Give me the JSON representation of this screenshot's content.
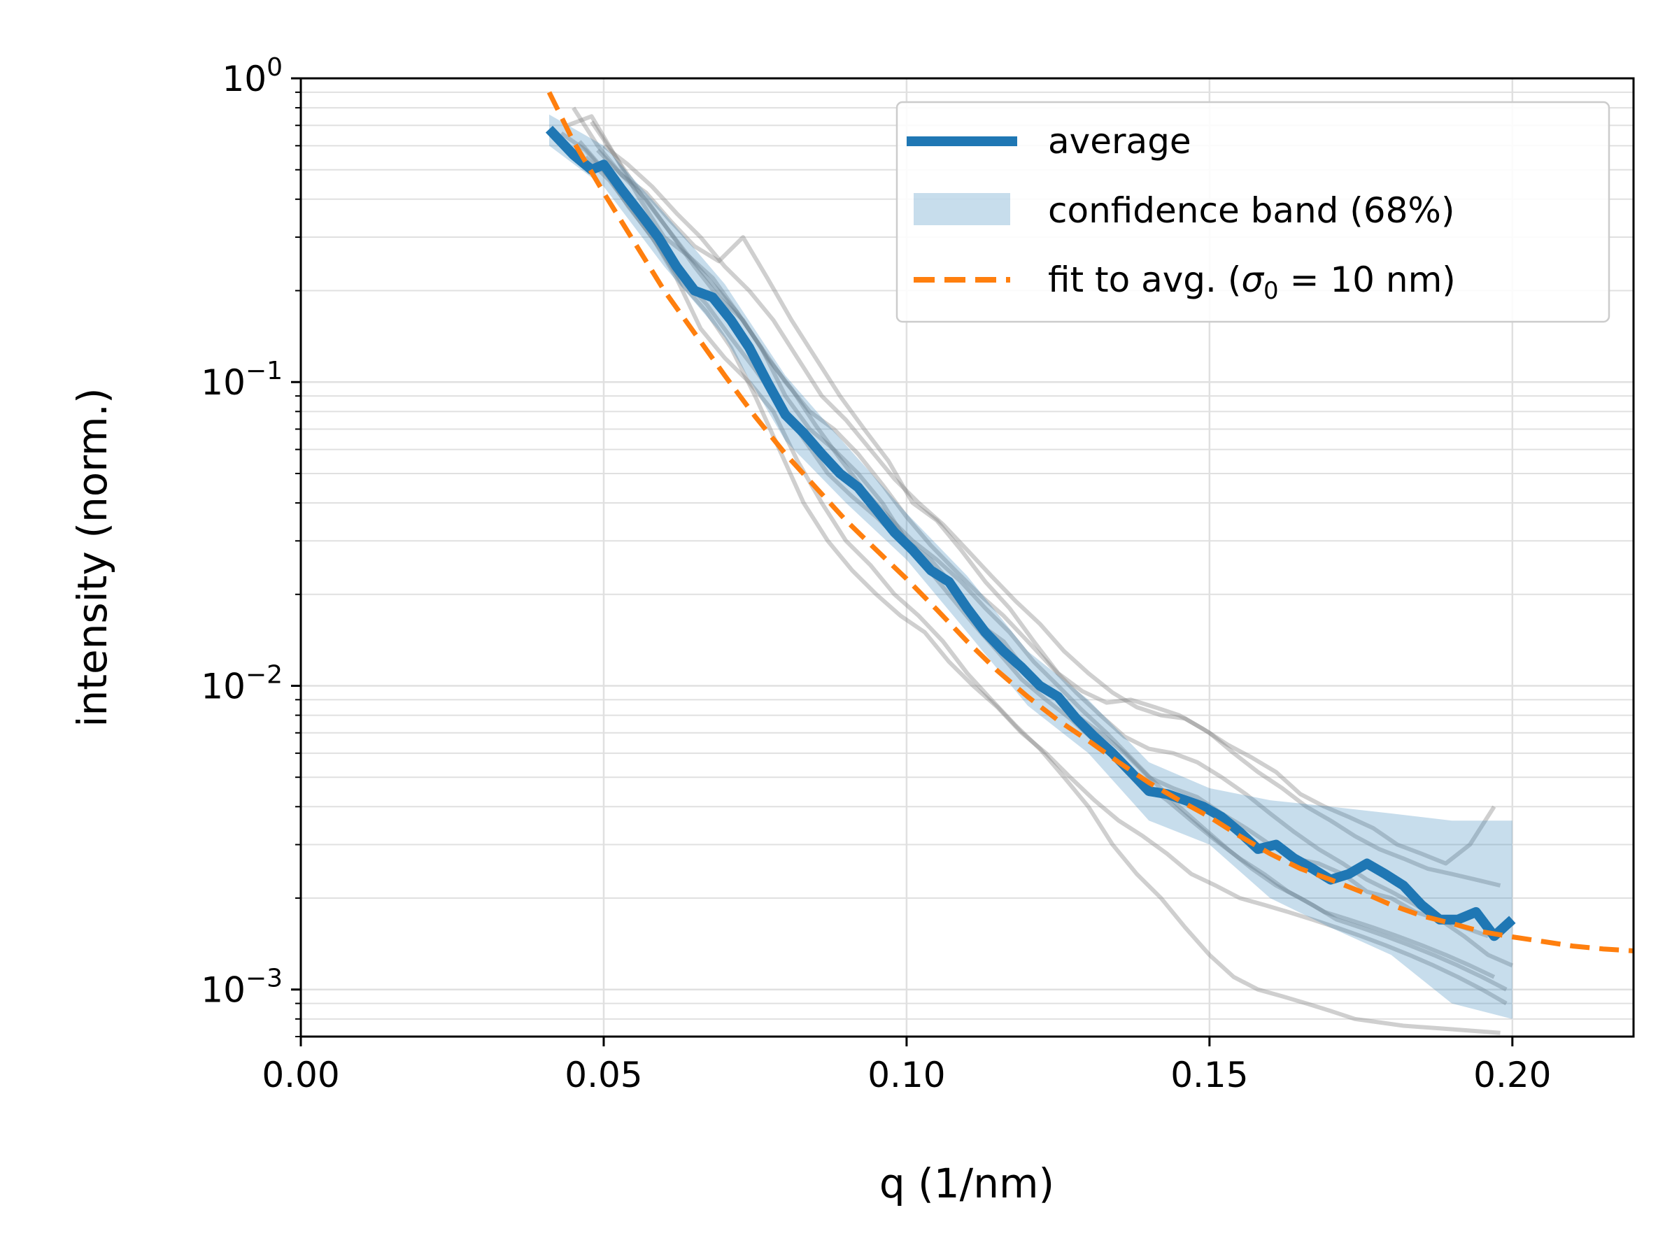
{
  "chart_data": {
    "type": "line",
    "title": "",
    "xlabel": "q (1/nm)",
    "ylabel": "intensity (norm.)",
    "xlim": [
      0.0,
      0.22
    ],
    "ylim": [
      0.0007,
      1.0
    ],
    "yscale": "log",
    "grid": true,
    "legend_position": "top-right",
    "x_ticks": [
      {
        "value": 0.0,
        "label": "0.00"
      },
      {
        "value": 0.05,
        "label": "0.05"
      },
      {
        "value": 0.1,
        "label": "0.10"
      },
      {
        "value": 0.15,
        "label": "0.15"
      },
      {
        "value": 0.2,
        "label": "0.20"
      }
    ],
    "y_ticks": [
      {
        "value": 1.0,
        "base": "10",
        "exp": "0"
      },
      {
        "value": 0.1,
        "base": "10",
        "exp": "−1"
      },
      {
        "value": 0.01,
        "base": "10",
        "exp": "−2"
      },
      {
        "value": 0.001,
        "base": "10",
        "exp": "−3"
      }
    ],
    "legend": [
      {
        "key": "avg",
        "label": "average"
      },
      {
        "key": "band",
        "label": "confidence band (68%)"
      },
      {
        "key": "fit",
        "label": "fit to avg. (",
        "label_symbol": "σ",
        "label_sub": "0",
        "label_tail": " = 10 nm)"
      }
    ],
    "colors": {
      "average": "#1f77b4",
      "band": "#1f77b4",
      "fit": "#ff7f0e",
      "samples": "#808080",
      "grid": "#e0e0e0"
    },
    "series": [
      {
        "name": "average",
        "x": [
          0.041,
          0.045,
          0.048,
          0.05,
          0.053,
          0.056,
          0.059,
          0.062,
          0.065,
          0.068,
          0.071,
          0.074,
          0.077,
          0.08,
          0.083,
          0.086,
          0.089,
          0.092,
          0.095,
          0.098,
          0.101,
          0.104,
          0.107,
          0.11,
          0.113,
          0.116,
          0.119,
          0.122,
          0.125,
          0.128,
          0.131,
          0.134,
          0.137,
          0.14,
          0.143,
          0.146,
          0.149,
          0.152,
          0.155,
          0.158,
          0.161,
          0.164,
          0.167,
          0.17,
          0.173,
          0.176,
          0.179,
          0.182,
          0.185,
          0.188,
          0.191,
          0.194,
          0.197,
          0.2
        ],
        "y": [
          0.68,
          0.56,
          0.5,
          0.52,
          0.43,
          0.36,
          0.3,
          0.24,
          0.2,
          0.19,
          0.16,
          0.13,
          0.1,
          0.078,
          0.068,
          0.058,
          0.05,
          0.045,
          0.038,
          0.032,
          0.028,
          0.024,
          0.022,
          0.018,
          0.015,
          0.013,
          0.0115,
          0.01,
          0.0092,
          0.0078,
          0.0068,
          0.006,
          0.0052,
          0.0045,
          0.0044,
          0.0042,
          0.004,
          0.0037,
          0.0033,
          0.0029,
          0.003,
          0.0027,
          0.0025,
          0.0023,
          0.0024,
          0.0026,
          0.0024,
          0.0022,
          0.0019,
          0.0017,
          0.0017,
          0.0018,
          0.0015,
          0.0017
        ]
      },
      {
        "name": "confidence band (68%)",
        "x": [
          0.041,
          0.05,
          0.06,
          0.07,
          0.08,
          0.09,
          0.1,
          0.11,
          0.12,
          0.13,
          0.14,
          0.15,
          0.16,
          0.17,
          0.18,
          0.19,
          0.2
        ],
        "lower": [
          0.6,
          0.44,
          0.24,
          0.14,
          0.064,
          0.04,
          0.026,
          0.015,
          0.0086,
          0.006,
          0.0036,
          0.003,
          0.002,
          0.0016,
          0.0013,
          0.0009,
          0.0008
        ],
        "upper": [
          0.76,
          0.6,
          0.36,
          0.21,
          0.105,
          0.062,
          0.037,
          0.023,
          0.013,
          0.009,
          0.0056,
          0.0046,
          0.0042,
          0.004,
          0.0038,
          0.0036,
          0.0036
        ]
      },
      {
        "name": "fit to avg.",
        "x": [
          0.041,
          0.045,
          0.05,
          0.055,
          0.06,
          0.065,
          0.07,
          0.075,
          0.08,
          0.085,
          0.09,
          0.095,
          0.1,
          0.105,
          0.11,
          0.115,
          0.12,
          0.125,
          0.13,
          0.135,
          0.14,
          0.145,
          0.15,
          0.155,
          0.16,
          0.165,
          0.17,
          0.175,
          0.18,
          0.185,
          0.19,
          0.195,
          0.2,
          0.205,
          0.21,
          0.215,
          0.22
        ],
        "y": [
          0.9,
          0.62,
          0.42,
          0.29,
          0.2,
          0.145,
          0.105,
          0.077,
          0.058,
          0.045,
          0.035,
          0.028,
          0.0225,
          0.0178,
          0.014,
          0.0112,
          0.0092,
          0.0077,
          0.0066,
          0.0056,
          0.0048,
          0.0042,
          0.0037,
          0.0032,
          0.0028,
          0.0025,
          0.0023,
          0.0021,
          0.0019,
          0.00175,
          0.00165,
          0.00155,
          0.00149,
          0.00144,
          0.00139,
          0.00136,
          0.00134
        ]
      }
    ],
    "samples": [
      {
        "x": [
          0.044,
          0.048,
          0.052,
          0.056,
          0.06,
          0.064,
          0.068,
          0.072,
          0.076,
          0.08,
          0.084,
          0.088,
          0.092,
          0.096,
          0.1,
          0.104,
          0.108,
          0.112,
          0.116,
          0.12,
          0.124,
          0.128,
          0.132,
          0.136,
          0.14,
          0.144,
          0.148,
          0.152,
          0.156,
          0.16,
          0.164,
          0.168,
          0.172,
          0.176,
          0.18,
          0.184,
          0.188,
          0.192,
          0.196
        ],
        "y": [
          0.7,
          0.75,
          0.55,
          0.4,
          0.3,
          0.26,
          0.22,
          0.17,
          0.13,
          0.09,
          0.07,
          0.06,
          0.05,
          0.04,
          0.03,
          0.026,
          0.021,
          0.016,
          0.014,
          0.011,
          0.0094,
          0.008,
          0.007,
          0.006,
          0.005,
          0.0046,
          0.0043,
          0.0038,
          0.0034,
          0.003,
          0.0027,
          0.0026,
          0.0024,
          0.0021,
          0.002,
          0.0018,
          0.0017,
          0.0016,
          0.0015
        ]
      },
      {
        "x": [
          0.045,
          0.049,
          0.053,
          0.057,
          0.061,
          0.065,
          0.069,
          0.073,
          0.077,
          0.081,
          0.085,
          0.089,
          0.093,
          0.097,
          0.101,
          0.105,
          0.109,
          0.113,
          0.117,
          0.121,
          0.125,
          0.129,
          0.133,
          0.137,
          0.141,
          0.145,
          0.149,
          0.153,
          0.157,
          0.161,
          0.165,
          0.169,
          0.173,
          0.177,
          0.181,
          0.185,
          0.189,
          0.193,
          0.197
        ],
        "y": [
          0.8,
          0.6,
          0.48,
          0.42,
          0.34,
          0.28,
          0.25,
          0.3,
          0.22,
          0.16,
          0.12,
          0.09,
          0.07,
          0.055,
          0.04,
          0.035,
          0.028,
          0.022,
          0.018,
          0.014,
          0.011,
          0.0096,
          0.0088,
          0.009,
          0.0085,
          0.008,
          0.0072,
          0.0064,
          0.0058,
          0.0052,
          0.0044,
          0.004,
          0.0037,
          0.0034,
          0.003,
          0.0028,
          0.0026,
          0.003,
          0.004
        ]
      },
      {
        "x": [
          0.046,
          0.05,
          0.054,
          0.058,
          0.062,
          0.066,
          0.07,
          0.074,
          0.078,
          0.082,
          0.086,
          0.09,
          0.094,
          0.098,
          0.102,
          0.106,
          0.11,
          0.114,
          0.118,
          0.122,
          0.126,
          0.13,
          0.134,
          0.138,
          0.142,
          0.146,
          0.15,
          0.154,
          0.158,
          0.162,
          0.166,
          0.17,
          0.174,
          0.178,
          0.182,
          0.186,
          0.19,
          0.194,
          0.198
        ],
        "y": [
          0.62,
          0.5,
          0.38,
          0.3,
          0.22,
          0.15,
          0.12,
          0.1,
          0.08,
          0.055,
          0.04,
          0.03,
          0.025,
          0.02,
          0.017,
          0.014,
          0.011,
          0.009,
          0.0074,
          0.0062,
          0.005,
          0.004,
          0.003,
          0.0024,
          0.002,
          0.0016,
          0.0013,
          0.0011,
          0.001,
          0.00095,
          0.0009,
          0.00085,
          0.0008,
          0.00078,
          0.00076,
          0.00075,
          0.00074,
          0.00073,
          0.00072
        ]
      },
      {
        "x": [
          0.047,
          0.051,
          0.055,
          0.059,
          0.063,
          0.067,
          0.071,
          0.075,
          0.079,
          0.083,
          0.087,
          0.091,
          0.095,
          0.099,
          0.103,
          0.107,
          0.111,
          0.115,
          0.119,
          0.123,
          0.127,
          0.131,
          0.135,
          0.139,
          0.143,
          0.147,
          0.151,
          0.155,
          0.159,
          0.163,
          0.167,
          0.171,
          0.175,
          0.179,
          0.183,
          0.187,
          0.191,
          0.195,
          0.199
        ],
        "y": [
          0.55,
          0.46,
          0.36,
          0.28,
          0.21,
          0.17,
          0.13,
          0.09,
          0.06,
          0.04,
          0.03,
          0.024,
          0.02,
          0.017,
          0.015,
          0.012,
          0.01,
          0.0085,
          0.007,
          0.006,
          0.005,
          0.0042,
          0.0036,
          0.0032,
          0.0028,
          0.0024,
          0.0022,
          0.002,
          0.0019,
          0.0018,
          0.0017,
          0.0016,
          0.0015,
          0.0014,
          0.0013,
          0.0012,
          0.0011,
          0.001,
          0.0009
        ]
      },
      {
        "x": [
          0.05,
          0.054,
          0.058,
          0.062,
          0.066,
          0.07,
          0.074,
          0.078,
          0.082,
          0.086,
          0.09,
          0.094,
          0.098,
          0.102,
          0.106,
          0.11,
          0.114,
          0.118,
          0.122,
          0.126,
          0.13,
          0.134,
          0.138,
          0.142,
          0.146,
          0.15,
          0.154,
          0.158,
          0.162,
          0.166,
          0.17,
          0.174,
          0.178,
          0.182,
          0.186,
          0.19,
          0.194,
          0.198
        ],
        "y": [
          0.6,
          0.52,
          0.44,
          0.36,
          0.3,
          0.24,
          0.2,
          0.16,
          0.12,
          0.09,
          0.075,
          0.06,
          0.048,
          0.04,
          0.034,
          0.028,
          0.023,
          0.019,
          0.016,
          0.013,
          0.011,
          0.0095,
          0.0085,
          0.008,
          0.0078,
          0.007,
          0.006,
          0.0052,
          0.0046,
          0.004,
          0.0036,
          0.0032,
          0.0029,
          0.0027,
          0.0025,
          0.0024,
          0.0023,
          0.0022
        ]
      },
      {
        "x": [
          0.043,
          0.047,
          0.051,
          0.055,
          0.059,
          0.063,
          0.067,
          0.071,
          0.075,
          0.079,
          0.083,
          0.087,
          0.091,
          0.095,
          0.099,
          0.103,
          0.107,
          0.111,
          0.115,
          0.119,
          0.123,
          0.127,
          0.131,
          0.135,
          0.139,
          0.143,
          0.147,
          0.151,
          0.155,
          0.159,
          0.163,
          0.167,
          0.171,
          0.175,
          0.179,
          0.183,
          0.187,
          0.191,
          0.195,
          0.199
        ],
        "y": [
          0.66,
          0.58,
          0.47,
          0.37,
          0.29,
          0.22,
          0.18,
          0.14,
          0.11,
          0.085,
          0.065,
          0.05,
          0.042,
          0.036,
          0.03,
          0.025,
          0.02,
          0.016,
          0.013,
          0.0105,
          0.009,
          0.0078,
          0.0066,
          0.0056,
          0.0048,
          0.0042,
          0.0036,
          0.0031,
          0.0027,
          0.0024,
          0.0021,
          0.0019,
          0.0017,
          0.0016,
          0.0015,
          0.0014,
          0.0013,
          0.0012,
          0.0011,
          0.001
        ]
      },
      {
        "x": [
          0.048,
          0.052,
          0.056,
          0.06,
          0.064,
          0.068,
          0.072,
          0.076,
          0.08,
          0.084,
          0.088,
          0.092,
          0.096,
          0.1,
          0.104,
          0.108,
          0.112,
          0.116,
          0.12,
          0.124,
          0.128,
          0.132,
          0.136,
          0.14,
          0.144,
          0.148,
          0.152,
          0.156,
          0.16,
          0.164,
          0.168,
          0.172,
          0.176,
          0.18,
          0.184,
          0.188,
          0.192,
          0.196,
          0.2
        ],
        "y": [
          0.72,
          0.55,
          0.42,
          0.33,
          0.26,
          0.21,
          0.17,
          0.13,
          0.1,
          0.08,
          0.07,
          0.058,
          0.046,
          0.036,
          0.029,
          0.024,
          0.02,
          0.017,
          0.014,
          0.0115,
          0.0095,
          0.008,
          0.0068,
          0.0062,
          0.006,
          0.0056,
          0.005,
          0.0044,
          0.0038,
          0.0033,
          0.0029,
          0.0026,
          0.0023,
          0.0021,
          0.0019,
          0.0017,
          0.0015,
          0.0013,
          0.0012
        ]
      },
      {
        "x": [
          0.049,
          0.053,
          0.057,
          0.061,
          0.065,
          0.069,
          0.073,
          0.077,
          0.081,
          0.085,
          0.089,
          0.093,
          0.097,
          0.101,
          0.105,
          0.109,
          0.113,
          0.117,
          0.121,
          0.125,
          0.129,
          0.133,
          0.137,
          0.141,
          0.145,
          0.149,
          0.153,
          0.157,
          0.161,
          0.165,
          0.169,
          0.173,
          0.177,
          0.181,
          0.185,
          0.189,
          0.193,
          0.197
        ],
        "y": [
          0.58,
          0.48,
          0.4,
          0.31,
          0.24,
          0.19,
          0.16,
          0.12,
          0.095,
          0.072,
          0.056,
          0.044,
          0.036,
          0.03,
          0.026,
          0.022,
          0.018,
          0.015,
          0.012,
          0.01,
          0.0083,
          0.007,
          0.0058,
          0.0048,
          0.004,
          0.0034,
          0.0029,
          0.0025,
          0.0022,
          0.002,
          0.0018,
          0.0017,
          0.0016,
          0.0015,
          0.0014,
          0.0013,
          0.0012,
          0.0011
        ]
      }
    ]
  }
}
